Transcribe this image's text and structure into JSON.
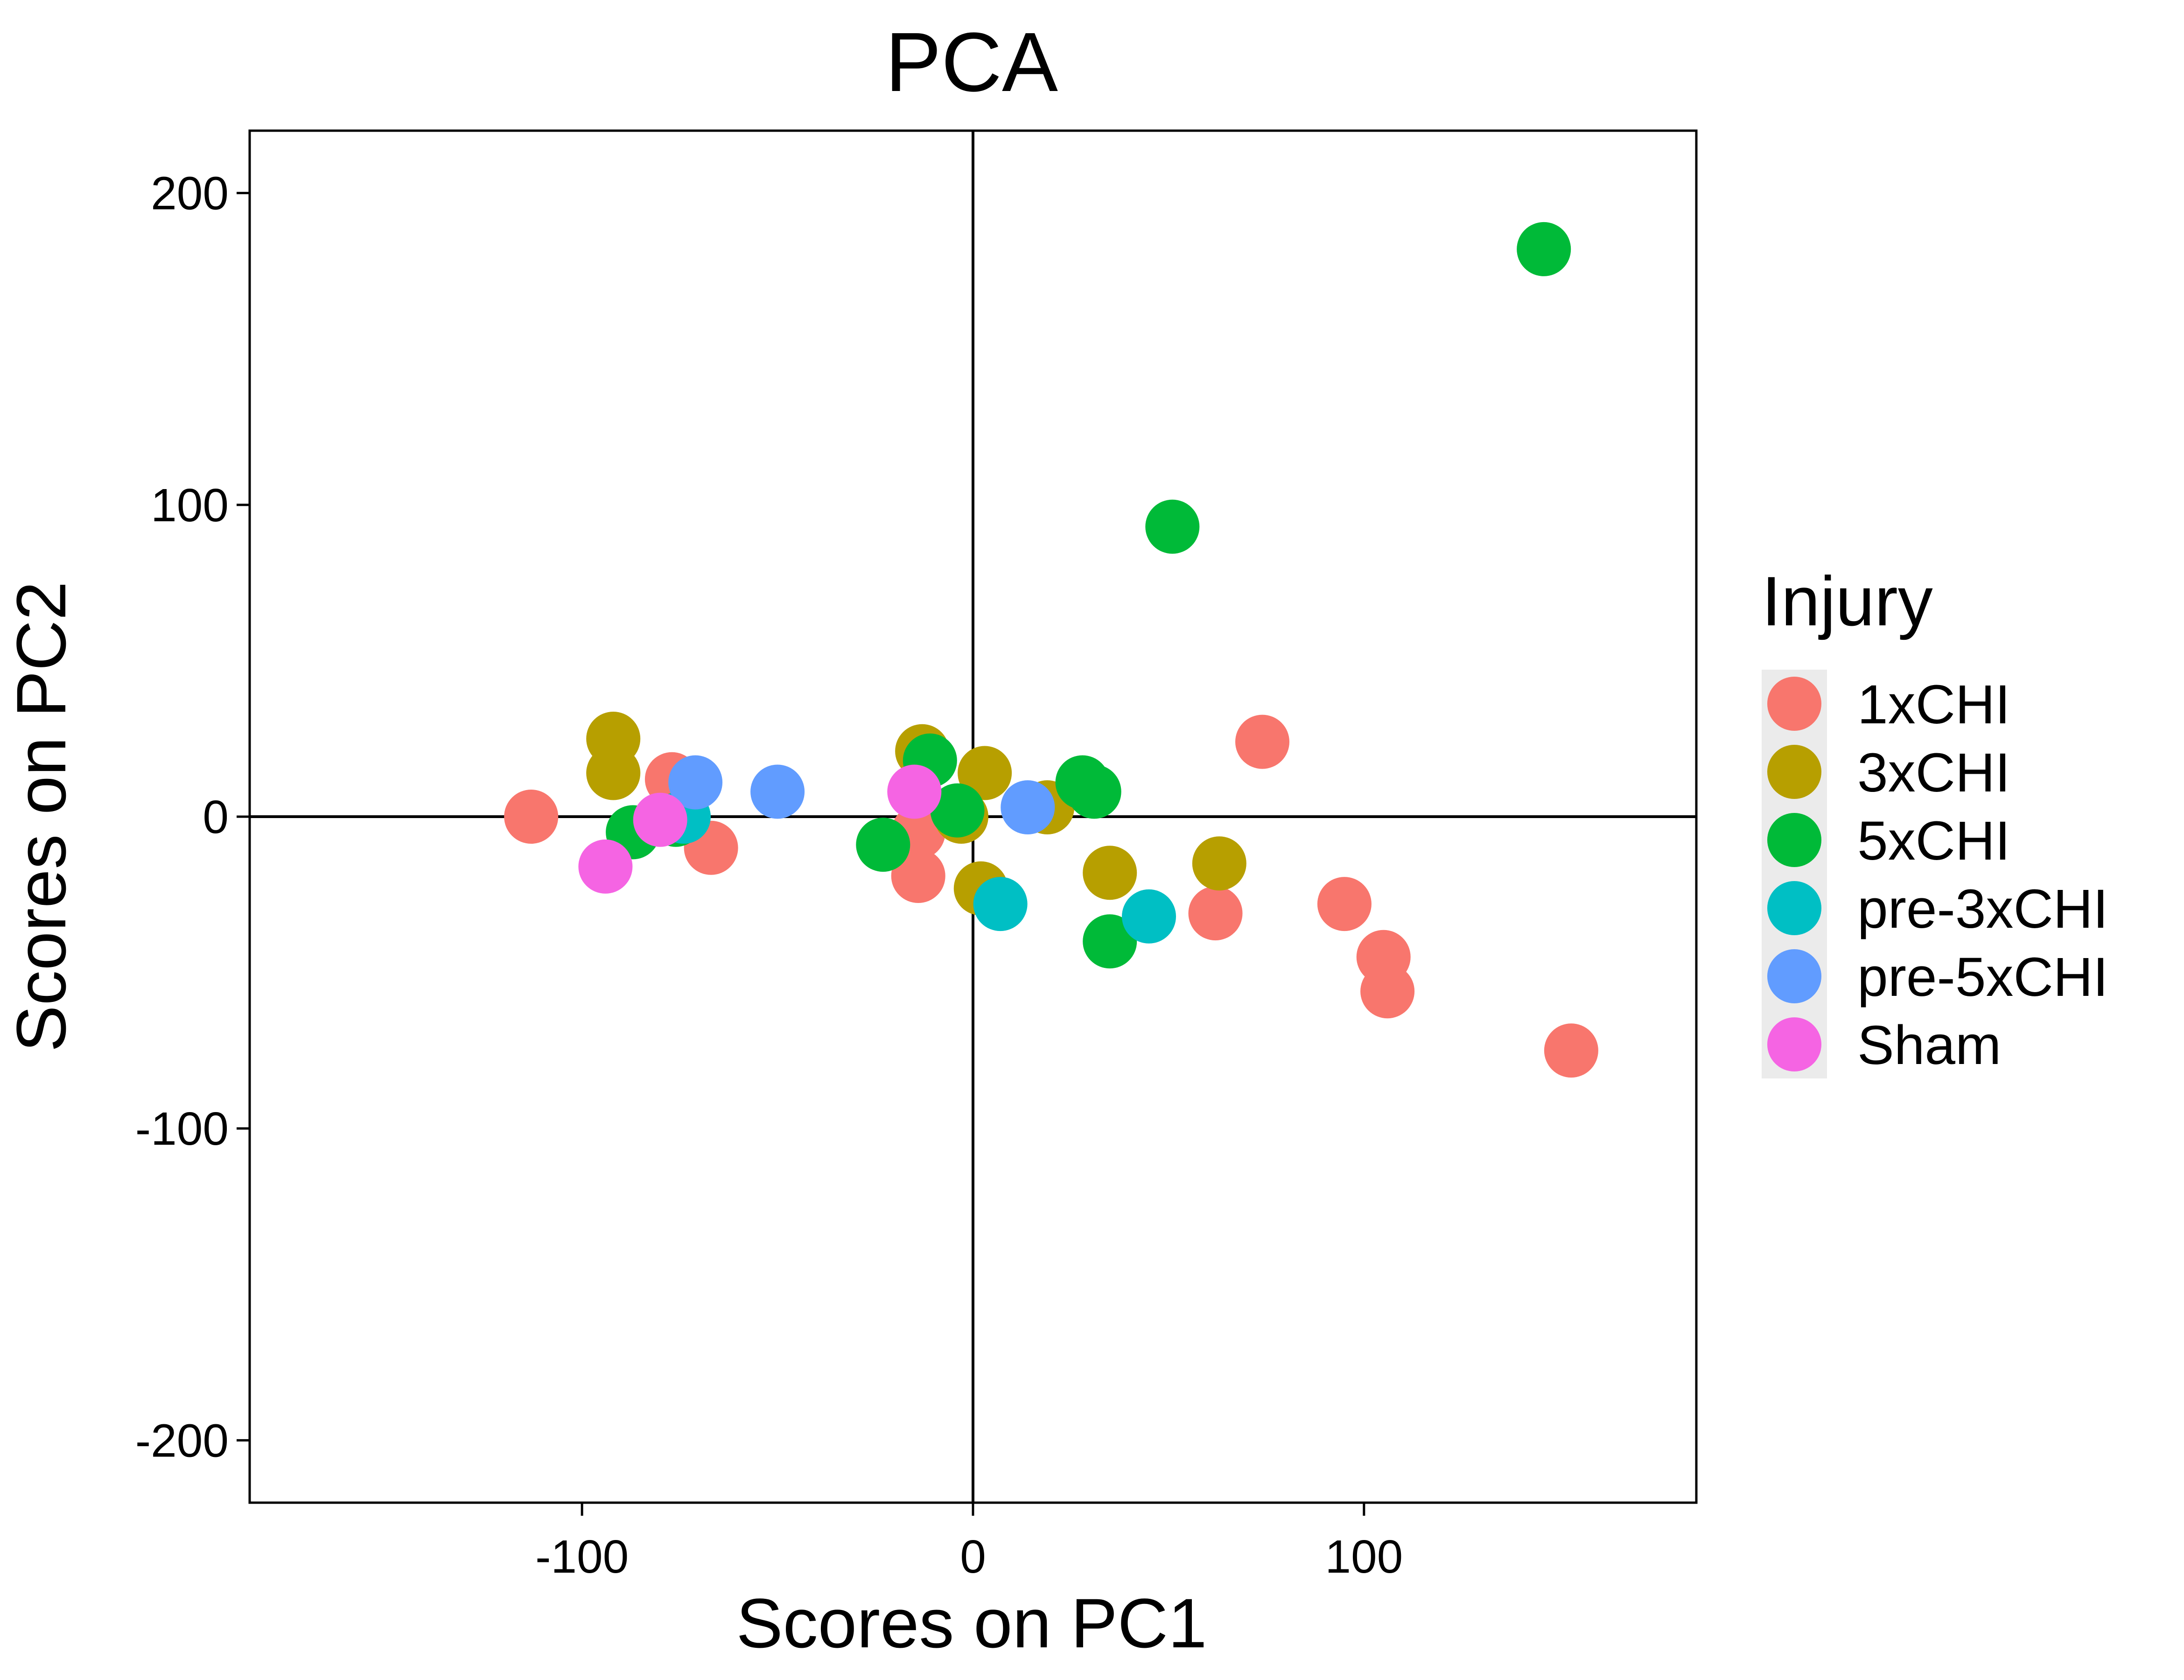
{
  "chart_data": {
    "type": "scatter",
    "title": "PCA",
    "xlabel": "Scores on PC1",
    "ylabel": "Scores on PC2",
    "xlim": [
      -185,
      185
    ],
    "ylim": [
      -220,
      220
    ],
    "xticks": [
      -100,
      0,
      100
    ],
    "yticks": [
      -200,
      -100,
      0,
      100,
      200
    ],
    "xtick_labels": [
      "-100",
      "0",
      "100"
    ],
    "ytick_labels": [
      "-200",
      "-100",
      "0",
      "100",
      "200"
    ],
    "zero_lines": true,
    "grid": false,
    "legend": {
      "title": "Injury",
      "placement": "right"
    },
    "series": [
      {
        "name": "1xCHI",
        "color": "#F8766D",
        "points": [
          [
            -113,
            0
          ],
          [
            -77,
            12
          ],
          [
            -67,
            -10
          ],
          [
            -14,
            -19
          ],
          [
            -14,
            -5
          ],
          [
            62,
            -31
          ],
          [
            74,
            24
          ],
          [
            95,
            -28
          ],
          [
            105,
            -45
          ],
          [
            106,
            -56
          ],
          [
            153,
            -75
          ]
        ]
      },
      {
        "name": "3xCHI",
        "color": "#B79F00",
        "points": [
          [
            -92,
            25
          ],
          [
            -92,
            14
          ],
          [
            -13,
            21
          ],
          [
            -3,
            0
          ],
          [
            3,
            14
          ],
          [
            2,
            -23
          ],
          [
            19,
            3
          ],
          [
            35,
            -18
          ],
          [
            63,
            -15
          ]
        ]
      },
      {
        "name": "5xCHI",
        "color": "#00BA38",
        "points": [
          [
            -87,
            -5
          ],
          [
            -76,
            -1
          ],
          [
            -23,
            -9
          ],
          [
            -11,
            18
          ],
          [
            -4,
            2
          ],
          [
            28,
            11
          ],
          [
            31,
            8
          ],
          [
            35,
            -40
          ],
          [
            51,
            93
          ],
          [
            146,
            182
          ]
        ]
      },
      {
        "name": "pre-3xCHI",
        "color": "#00BFC4",
        "points": [
          [
            -74,
            0
          ],
          [
            7,
            -28
          ],
          [
            45,
            -32
          ]
        ]
      },
      {
        "name": "pre-5xCHI",
        "color": "#619CFF",
        "points": [
          [
            -71,
            11
          ],
          [
            -50,
            8
          ],
          [
            14,
            3
          ]
        ]
      },
      {
        "name": "Sham",
        "color": "#F564E3",
        "points": [
          [
            -94,
            -16
          ],
          [
            -80,
            -1
          ],
          [
            -15,
            8
          ]
        ]
      }
    ]
  }
}
